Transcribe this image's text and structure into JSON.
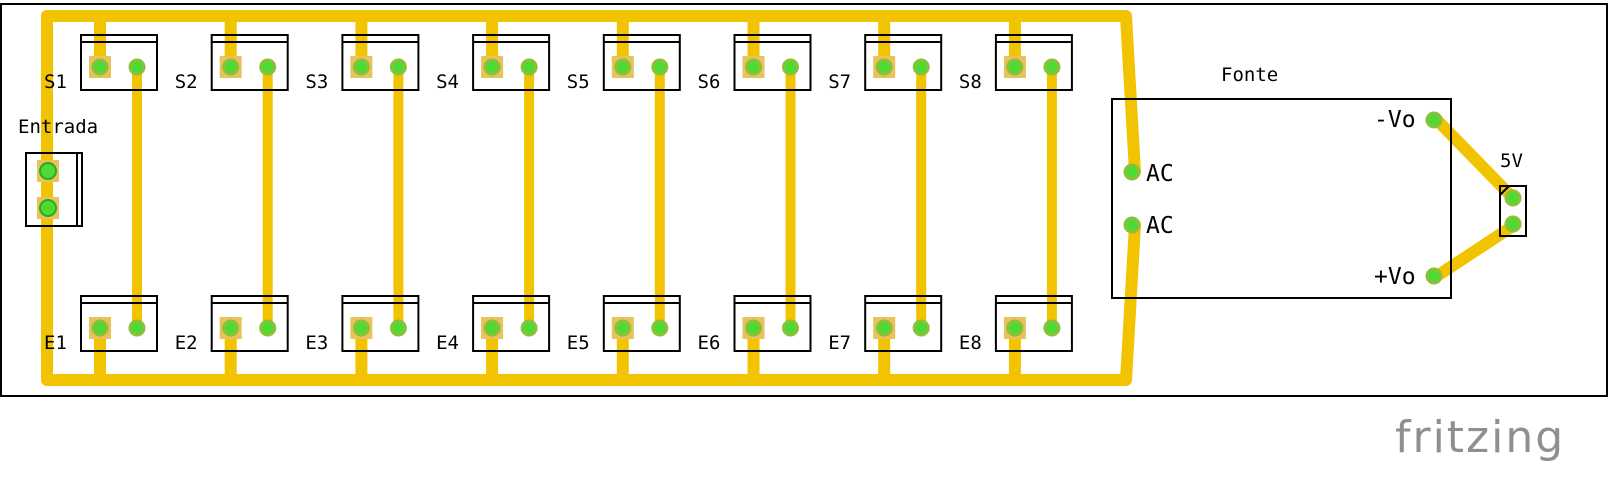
{
  "board": {
    "connectors_s": [
      "S1",
      "S2",
      "S3",
      "S4",
      "S5",
      "S6",
      "S7",
      "S8"
    ],
    "connectors_e": [
      "E1",
      "E2",
      "E3",
      "E4",
      "E5",
      "E6",
      "E7",
      "E8"
    ],
    "input_label": "Entrada",
    "psu": {
      "title": "Fonte",
      "ac1": "AC",
      "ac2": "AC",
      "neg": "-Vo",
      "pos": "+Vo"
    },
    "output_label": "5V"
  },
  "brand": "fritzing",
  "colors": {
    "trace": "#f2c300",
    "pad": "#e8c25a",
    "via": "#4ddb33",
    "outline": "#000000",
    "brand": "#8f8f8f"
  }
}
